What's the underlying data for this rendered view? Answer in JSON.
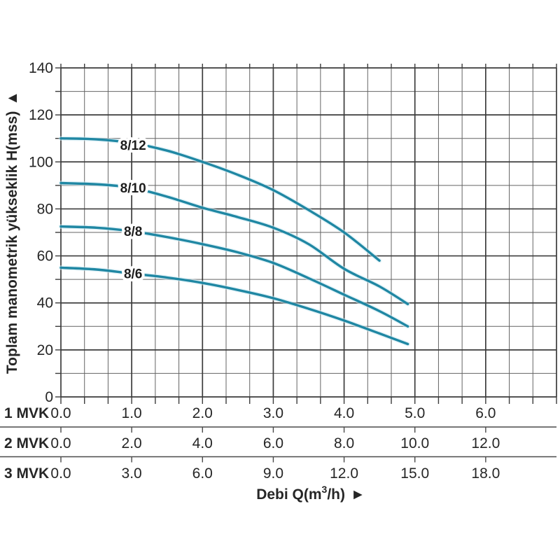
{
  "chart_data": {
    "type": "line",
    "title": "",
    "xlabel": "Debi Q(m³/h)",
    "ylabel": "Toplam manometrik yükseklik H(mss)",
    "xlabel_parts": {
      "pre": "Debi Q(m",
      "sup": "3",
      "post": "/h)",
      "arrow": "►"
    },
    "ylabel_text": "Toplam manometrik yükseklik H(mss)",
    "ylabel_arrow": "▲",
    "x_axis": {
      "min": 0,
      "max": 7,
      "major_step": 1,
      "minors_per_major": 3,
      "last_labeled": 6
    },
    "y_axis": {
      "min": 0,
      "max": 140,
      "major_step": 20,
      "minor_step": 10
    },
    "y_tick_labels": [
      "0",
      "20",
      "40",
      "60",
      "80",
      "100",
      "120",
      "140"
    ],
    "grid": true,
    "legend_position": "inline-on-curves",
    "series": [
      {
        "name": "8/12",
        "label_pos": {
          "x": 1.02,
          "y": 106.8
        },
        "points": [
          [
            0,
            110
          ],
          [
            0.5,
            109.6
          ],
          [
            1,
            108
          ],
          [
            1.5,
            104.8
          ],
          [
            2,
            100
          ],
          [
            2.5,
            94.5
          ],
          [
            3,
            88
          ],
          [
            3.5,
            79.5
          ],
          [
            4,
            70
          ],
          [
            4.5,
            58
          ]
        ]
      },
      {
        "name": "8/10",
        "label_pos": {
          "x": 1.02,
          "y": 88.6
        },
        "points": [
          [
            0,
            91
          ],
          [
            0.5,
            90.5
          ],
          [
            1,
            89
          ],
          [
            1.5,
            85.2
          ],
          [
            2,
            80.5
          ],
          [
            2.5,
            76.5
          ],
          [
            3,
            72
          ],
          [
            3.5,
            65
          ],
          [
            4,
            54.5
          ],
          [
            4.5,
            47
          ],
          [
            4.9,
            39.5
          ]
        ]
      },
      {
        "name": "8/8",
        "label_pos": {
          "x": 1.02,
          "y": 70.2
        },
        "points": [
          [
            0,
            72.5
          ],
          [
            0.5,
            72
          ],
          [
            1,
            70.5
          ],
          [
            1.5,
            68
          ],
          [
            2,
            65
          ],
          [
            2.5,
            61.5
          ],
          [
            3,
            57
          ],
          [
            3.5,
            50.5
          ],
          [
            4,
            43.5
          ],
          [
            4.5,
            36.5
          ],
          [
            4.9,
            30
          ]
        ]
      },
      {
        "name": "8/6",
        "label_pos": {
          "x": 1.02,
          "y": 52.2
        },
        "points": [
          [
            0,
            55
          ],
          [
            0.5,
            54.2
          ],
          [
            1,
            52.5
          ],
          [
            1.5,
            50.8
          ],
          [
            2,
            48.5
          ],
          [
            2.5,
            45.5
          ],
          [
            3,
            42
          ],
          [
            3.5,
            37.5
          ],
          [
            4,
            32.5
          ],
          [
            4.5,
            27
          ],
          [
            4.9,
            22.5
          ]
        ]
      }
    ],
    "bottom_scales": [
      {
        "label": "1 MVK",
        "values": [
          "0.0",
          "1.0",
          "2.0",
          "3.0",
          "4.0",
          "5.0",
          "6.0"
        ]
      },
      {
        "label": "2 MVK",
        "values": [
          "0.0",
          "2.0",
          "4.0",
          "6.0",
          "8.0",
          "10.0",
          "12.0"
        ]
      },
      {
        "label": "3 MVK",
        "values": [
          "0.0",
          "3.0",
          "6.0",
          "9.0",
          "12.0",
          "15.0",
          "18.0"
        ]
      }
    ],
    "colors": {
      "curve": "#1f87a3",
      "curve_glow": "#cdeaf3",
      "grid_major": "#3c3c3c",
      "grid_minor": "#646464",
      "separator": "#4a4a4a",
      "text": "#262626",
      "background": "#ffffff"
    }
  }
}
